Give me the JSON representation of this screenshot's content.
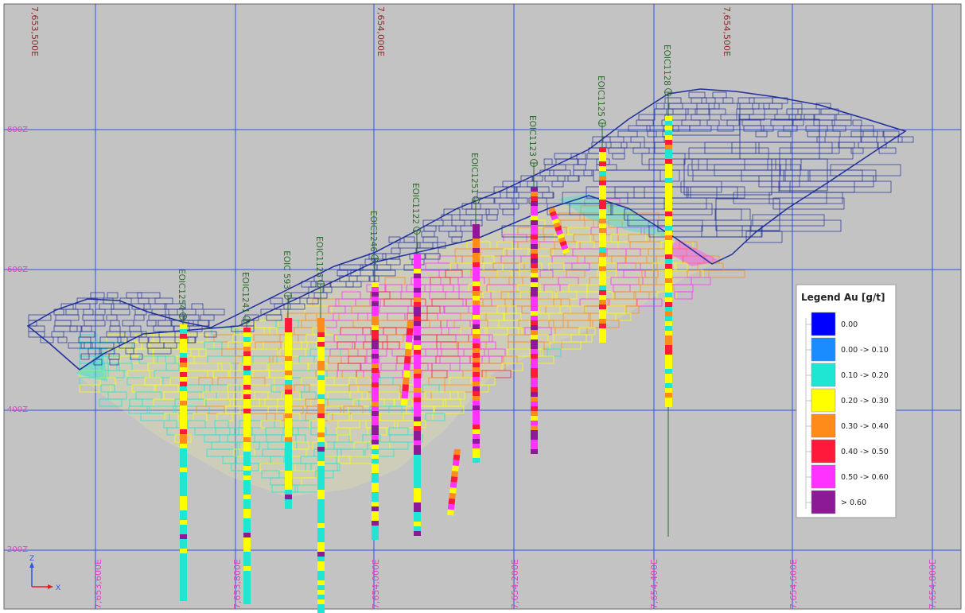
{
  "colors": {
    "background": "#c3c3c3",
    "grid": "#2f55e0",
    "pit_shell": "#1f2f9c",
    "drillhole_trace": "#2e6b2e",
    "drillhole_label": "#2b6b2b",
    "top_coord_label": "#8b2a2a",
    "elevation_label": "#e040c0",
    "bottom_coord_label": "#e040c0"
  },
  "top_axis_labels": [
    "7,653,500E",
    "7,654,000E",
    "7,654,500E"
  ],
  "bottom_axis_labels": [
    "7,653,600E",
    "7,653,800E",
    "7,654,000E",
    "7,654,200E",
    "7,654,400E",
    "7,654,600E",
    "7,654,800E"
  ],
  "elevation_labels": [
    "800Z",
    "600Z",
    "400Z",
    "200Z"
  ],
  "axis_indicator": {
    "z": "Z",
    "x": "X"
  },
  "drillholes": [
    {
      "name": "EOIC1254"
    },
    {
      "name": "EOIC1241"
    },
    {
      "name": "EOIC 593"
    },
    {
      "name": "EOIC1126"
    },
    {
      "name": "EOIC1246"
    },
    {
      "name": "EOIC1122"
    },
    {
      "name": "EOIC1251"
    },
    {
      "name": "EOIC1123"
    },
    {
      "name": "EOIC1125"
    },
    {
      "name": "EOIC1128"
    }
  ],
  "legend": {
    "title": "Legend Au [g/t]",
    "items": [
      {
        "label": "0.00",
        "color": "#0000ff"
      },
      {
        "label": "0.00 -> 0.10",
        "color": "#1a8cff"
      },
      {
        "label": "0.10 -> 0.20",
        "color": "#1ee6d2"
      },
      {
        "label": "0.20 -> 0.30",
        "color": "#ffff00"
      },
      {
        "label": "0.30 -> 0.40",
        "color": "#ff8c1a"
      },
      {
        "label": "0.40 -> 0.50",
        "color": "#ff1a3c"
      },
      {
        "label": "0.50 -> 0.60",
        "color": "#ff33ff"
      },
      {
        "label": "> 0.60",
        "color": "#8c1a96"
      }
    ]
  }
}
